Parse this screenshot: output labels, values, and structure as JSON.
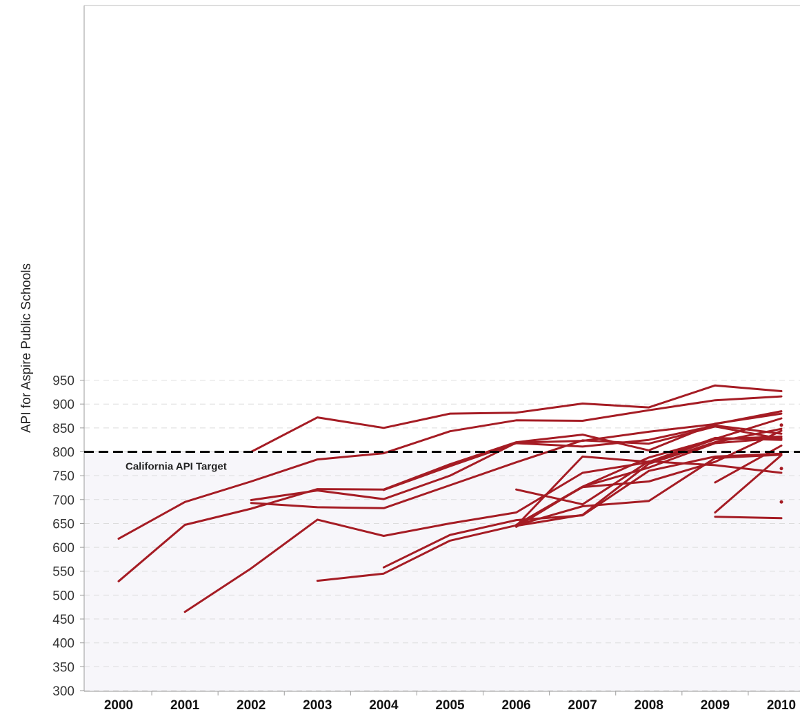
{
  "chart_data": {
    "type": "line",
    "title": "",
    "xlabel": "",
    "ylabel": "API for Aspire Public Schools",
    "x": [
      "2000",
      "2001",
      "2002",
      "2003",
      "2004",
      "2005",
      "2006",
      "2007",
      "2008",
      "2009",
      "2010"
    ],
    "ylim": [
      300,
      960
    ],
    "yticks": [
      300,
      350,
      400,
      450,
      500,
      550,
      600,
      650,
      700,
      750,
      800,
      850,
      900,
      950
    ],
    "grid": "horizontal dashed",
    "legend": "none",
    "line_color": "#a51c24",
    "reference_line": {
      "value": 800,
      "label": "California API Target",
      "style": "dashed",
      "color": "#000000"
    },
    "series": [
      {
        "values": [
          null,
          null,
          800,
          872,
          850,
          880,
          882,
          901,
          893,
          939,
          927
        ]
      },
      {
        "values": [
          618,
          695,
          738,
          784,
          797,
          843,
          866,
          865,
          887,
          908,
          916
        ]
      },
      {
        "values": [
          529,
          647,
          681,
          722,
          721,
          774,
          820,
          836,
          803,
          859,
          880
        ]
      },
      {
        "values": [
          null,
          465,
          556,
          658,
          624,
          650,
          673,
          756,
          778,
          826,
          832
        ]
      },
      {
        "values": [
          null,
          null,
          699,
          719,
          701,
          750,
          819,
          823,
          842,
          858,
          885
        ]
      },
      {
        "values": [
          null,
          null,
          693,
          684,
          682,
          730,
          778,
          824,
          817,
          853,
          827
        ]
      },
      {
        "values": [
          null,
          null,
          null,
          null,
          720,
          770,
          818,
          811,
          825,
          855,
          838
        ]
      },
      {
        "values": [
          null,
          null,
          null,
          530,
          545,
          614,
          646,
          686,
          697,
          787,
          794
        ]
      },
      {
        "values": [
          null,
          null,
          null,
          null,
          558,
          626,
          657,
          667,
          760,
          790,
          796
        ]
      },
      {
        "values": [
          null,
          null,
          null,
          null,
          null,
          null,
          721,
          690,
          780,
          772,
          756
        ]
      },
      {
        "values": [
          null,
          null,
          null,
          null,
          null,
          null,
          647,
          726,
          738,
          779,
          844
        ]
      },
      {
        "values": [
          null,
          null,
          null,
          null,
          null,
          null,
          645,
          668,
          775,
          820,
          848
        ]
      },
      {
        "values": [
          null,
          null,
          null,
          null,
          null,
          null,
          643,
          727,
          767,
          818,
          829
        ]
      },
      {
        "values": [
          null,
          null,
          null,
          null,
          null,
          null,
          645,
          790,
          779,
          829,
          825
        ]
      },
      {
        "values": [
          null,
          null,
          null,
          null,
          null,
          null,
          647,
          727,
          788,
          827,
          870
        ]
      },
      {
        "values": [
          null,
          null,
          null,
          null,
          null,
          null,
          null,
          null,
          null,
          736,
          813
        ]
      },
      {
        "values": [
          null,
          null,
          null,
          null,
          null,
          null,
          null,
          null,
          null,
          673,
          793
        ]
      },
      {
        "values": [
          null,
          null,
          null,
          null,
          null,
          null,
          null,
          null,
          null,
          664,
          661
        ]
      },
      {
        "values": [
          null,
          null,
          null,
          null,
          null,
          null,
          null,
          null,
          null,
          null,
          856
        ]
      },
      {
        "values": [
          null,
          null,
          null,
          null,
          null,
          null,
          null,
          null,
          null,
          null,
          765
        ]
      },
      {
        "values": [
          null,
          null,
          null,
          null,
          null,
          null,
          null,
          null,
          null,
          null,
          695
        ]
      }
    ]
  }
}
